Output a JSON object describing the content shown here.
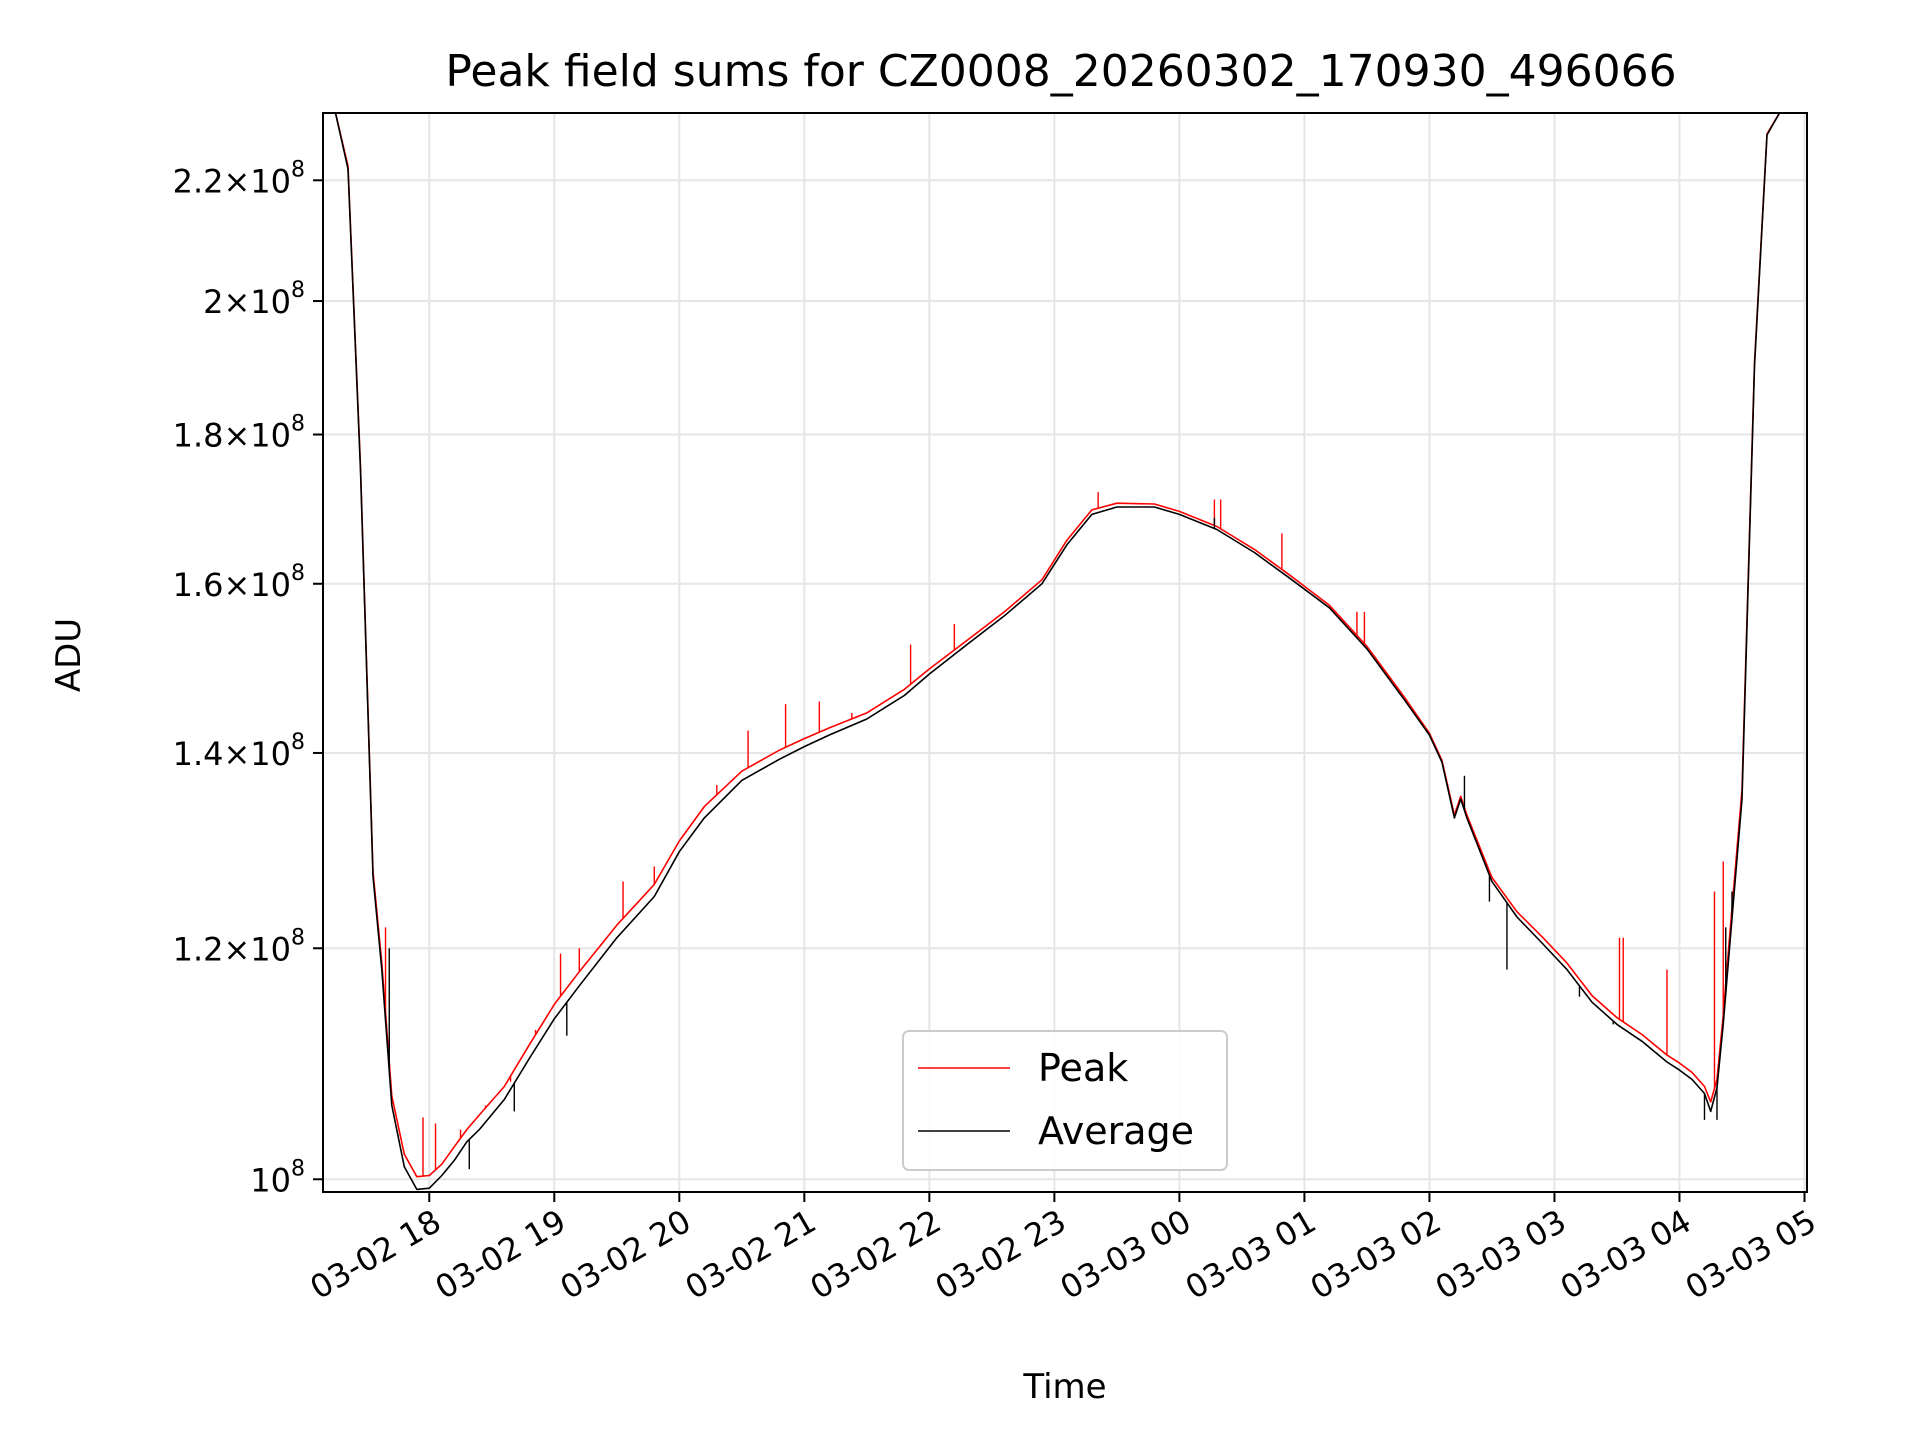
{
  "chart_data": {
    "type": "line",
    "title": "Peak field sums for CZ0008_20260302_170930_496066",
    "xlabel": "Time",
    "ylabel": "ADU",
    "yscale": "log",
    "ylim": [
      99000000,
      232000000
    ],
    "x_unit": "hours since 03-02 17:00",
    "xlim": [
      0.15,
      12.02
    ],
    "grid": true,
    "legend_position": "lower center",
    "xticks": [
      {
        "value": 1,
        "label": "03-02 18"
      },
      {
        "value": 2,
        "label": "03-02 19"
      },
      {
        "value": 3,
        "label": "03-02 20"
      },
      {
        "value": 4,
        "label": "03-02 21"
      },
      {
        "value": 5,
        "label": "03-02 22"
      },
      {
        "value": 6,
        "label": "03-02 23"
      },
      {
        "value": 7,
        "label": "03-03 00"
      },
      {
        "value": 8,
        "label": "03-03 01"
      },
      {
        "value": 9,
        "label": "03-03 02"
      },
      {
        "value": 10,
        "label": "03-03 03"
      },
      {
        "value": 11,
        "label": "03-03 04"
      },
      {
        "value": 12,
        "label": "03-03 05"
      }
    ],
    "yticks": [
      {
        "value": 100000000,
        "mantissa": "",
        "exponent": "8"
      },
      {
        "value": 120000000,
        "mantissa": "1.2",
        "exponent": "8"
      },
      {
        "value": 140000000,
        "mantissa": "1.4",
        "exponent": "8"
      },
      {
        "value": 160000000,
        "mantissa": "1.6",
        "exponent": "8"
      },
      {
        "value": 180000000,
        "mantissa": "1.8",
        "exponent": "8"
      },
      {
        "value": 200000000,
        "mantissa": "2",
        "exponent": "8"
      },
      {
        "value": 220000000,
        "mantissa": "2.2",
        "exponent": "8"
      }
    ],
    "series": [
      {
        "name": "Average",
        "color": "#000000",
        "x": [
          0.15,
          0.25,
          0.35,
          0.45,
          0.55,
          0.62,
          0.7,
          0.8,
          0.9,
          1.0,
          1.1,
          1.2,
          1.3,
          1.4,
          1.6,
          1.8,
          2.0,
          2.2,
          2.5,
          2.8,
          3.0,
          3.2,
          3.5,
          3.8,
          4.0,
          4.2,
          4.5,
          4.8,
          5.0,
          5.3,
          5.6,
          5.9,
          6.1,
          6.3,
          6.5,
          6.8,
          7.0,
          7.3,
          7.6,
          7.9,
          8.2,
          8.5,
          8.8,
          9.0,
          9.1,
          9.2,
          9.25,
          9.3,
          9.5,
          9.7,
          9.9,
          10.1,
          10.3,
          10.5,
          10.7,
          10.9,
          11.0,
          11.1,
          11.2,
          11.25,
          11.3,
          11.35,
          11.4,
          11.5,
          11.6,
          11.7,
          11.8,
          11.9,
          12.02
        ],
        "y": [
          232000000,
          232000000,
          222000000,
          175000000,
          127000000,
          118000000,
          106000000,
          101000000,
          99200000,
          99300000,
          100300000,
          101500000,
          103000000,
          104000000,
          106500000,
          110000000,
          113500000,
          116500000,
          121000000,
          125000000,
          129500000,
          133000000,
          137000000,
          139300000,
          140700000,
          142000000,
          143800000,
          146500000,
          149000000,
          152500000,
          156000000,
          160000000,
          165000000,
          169000000,
          170000000,
          170000000,
          169000000,
          167000000,
          164000000,
          160500000,
          157000000,
          152000000,
          146000000,
          142000000,
          139000000,
          133000000,
          135000000,
          133000000,
          126500000,
          123000000,
          120500000,
          118000000,
          115000000,
          113000000,
          111500000,
          109700000,
          109000000,
          108200000,
          107000000,
          105500000,
          107500000,
          113000000,
          120000000,
          135000000,
          190000000,
          228000000,
          232000000,
          232000000,
          232000000
        ]
      },
      {
        "name": "Peak",
        "color": "#ff0000",
        "x": [
          0.15,
          0.25,
          0.35,
          0.45,
          0.55,
          0.62,
          0.7,
          0.8,
          0.9,
          1.0,
          1.1,
          1.2,
          1.3,
          1.4,
          1.6,
          1.8,
          2.0,
          2.2,
          2.5,
          2.8,
          3.0,
          3.2,
          3.5,
          3.8,
          4.0,
          4.2,
          4.5,
          4.8,
          5.0,
          5.3,
          5.6,
          5.9,
          6.1,
          6.3,
          6.5,
          6.8,
          7.0,
          7.3,
          7.6,
          7.9,
          8.2,
          8.5,
          8.8,
          9.0,
          9.1,
          9.2,
          9.25,
          9.3,
          9.5,
          9.7,
          9.9,
          10.1,
          10.3,
          10.5,
          10.7,
          10.9,
          11.0,
          11.1,
          11.2,
          11.25,
          11.3,
          11.35,
          11.4,
          11.5,
          11.6,
          11.7,
          11.8,
          11.9,
          12.02
        ],
        "y": [
          232000000,
          232000000,
          222500000,
          175500000,
          127500000,
          118600000,
          106800000,
          102000000,
          100200000,
          100300000,
          101200000,
          102600000,
          104000000,
          105200000,
          107600000,
          111200000,
          114800000,
          117800000,
          122200000,
          126200000,
          130600000,
          134200000,
          138000000,
          140300000,
          141600000,
          142800000,
          144500000,
          147200000,
          149600000,
          153000000,
          156500000,
          160500000,
          165600000,
          169600000,
          170500000,
          170400000,
          169400000,
          167400000,
          164400000,
          160900000,
          157300000,
          152300000,
          146300000,
          142200000,
          139200000,
          133300000,
          135300000,
          133300000,
          126900000,
          123500000,
          121100000,
          118600000,
          115600000,
          113600000,
          112100000,
          110300000,
          109600000,
          108800000,
          107600000,
          106300000,
          108200000,
          113800000,
          121000000,
          136000000,
          190500000,
          228200000,
          232000000,
          232000000,
          232000000
        ]
      }
    ],
    "spikes": {
      "Peak": [
        [
          0.65,
          122000000
        ],
        [
          0.95,
          105000000
        ],
        [
          1.05,
          104500000
        ],
        [
          1.25,
          104000000
        ],
        [
          1.45,
          106000000
        ],
        [
          1.65,
          108000000
        ],
        [
          1.85,
          112500000
        ],
        [
          2.05,
          119500000
        ],
        [
          2.2,
          120000000
        ],
        [
          2.55,
          126500000
        ],
        [
          2.8,
          128000000
        ],
        [
          3.3,
          136500000
        ],
        [
          3.55,
          142500000
        ],
        [
          3.85,
          145500000
        ],
        [
          4.12,
          145800000
        ],
        [
          4.38,
          144500000
        ],
        [
          4.85,
          152500000
        ],
        [
          5.2,
          155000000
        ],
        [
          6.35,
          172000000
        ],
        [
          7.28,
          171000000
        ],
        [
          7.33,
          171000000
        ],
        [
          7.82,
          166500000
        ],
        [
          8.42,
          156500000
        ],
        [
          8.48,
          156500000
        ],
        [
          10.52,
          121000000
        ],
        [
          10.55,
          121000000
        ],
        [
          10.9,
          118000000
        ],
        [
          11.28,
          125500000
        ],
        [
          11.35,
          128500000
        ]
      ],
      "Average": [
        [
          0.68,
          120000000
        ],
        [
          1.02,
          99500000
        ],
        [
          1.32,
          100800000
        ],
        [
          1.68,
          105500000
        ],
        [
          2.1,
          112000000
        ],
        [
          7.28,
          168500000
        ],
        [
          9.28,
          137500000
        ],
        [
          9.48,
          124500000
        ],
        [
          9.62,
          118000000
        ],
        [
          10.2,
          115500000
        ],
        [
          10.47,
          113000000
        ],
        [
          10.82,
          110500000
        ],
        [
          11.2,
          104800000
        ],
        [
          11.3,
          104800000
        ],
        [
          11.37,
          122000000
        ],
        [
          11.42,
          125500000
        ]
      ]
    }
  },
  "legend": {
    "items": [
      {
        "label": "Peak",
        "color": "#ff0000"
      },
      {
        "label": "Average",
        "color": "#000000"
      }
    ]
  }
}
